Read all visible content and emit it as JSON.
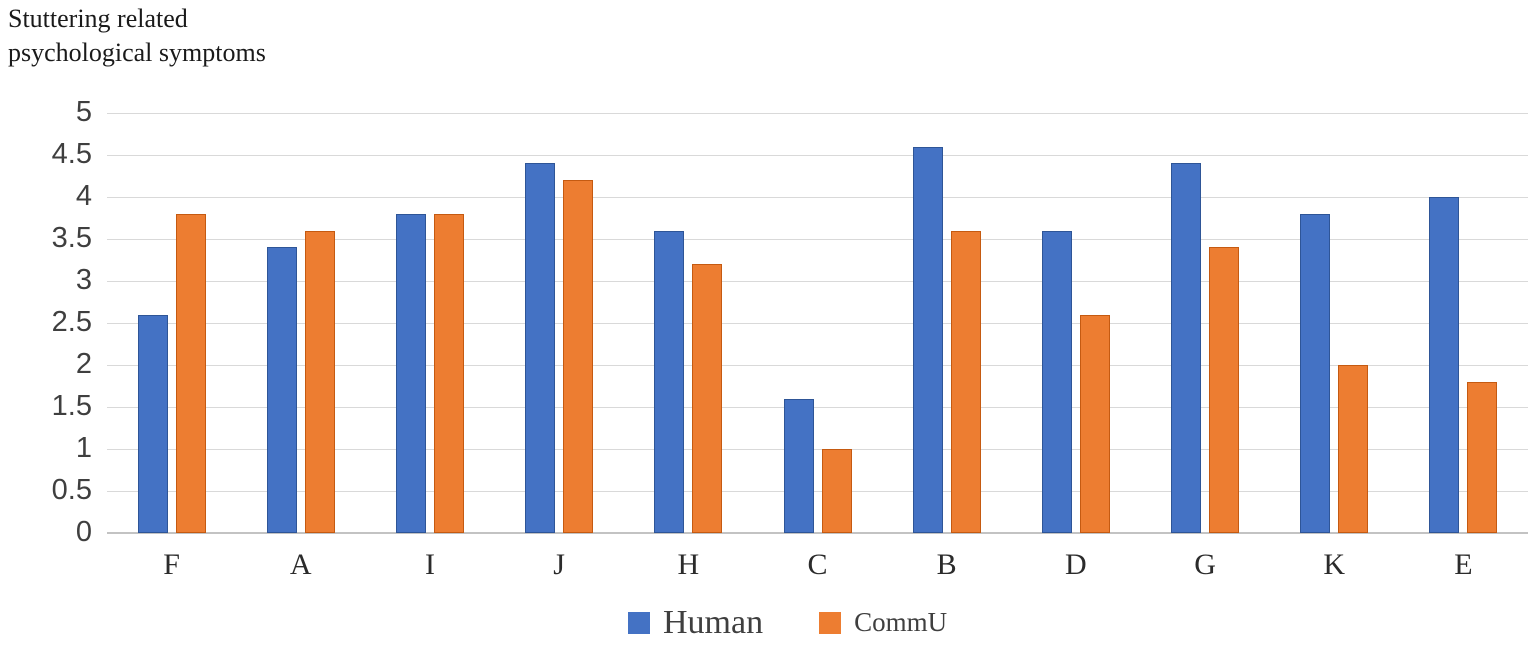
{
  "title": {
    "line1": "Stuttering related",
    "line2": "psychological symptoms"
  },
  "chart_data": {
    "type": "bar",
    "title": "Stuttering related psychological symptoms",
    "categories": [
      "F",
      "A",
      "I",
      "J",
      "H",
      "C",
      "B",
      "D",
      "G",
      "K",
      "E"
    ],
    "series": [
      {
        "name": "Human",
        "color": "#4472C4",
        "border_color": "#2e5597",
        "values": [
          2.6,
          3.4,
          3.8,
          4.4,
          3.6,
          1.6,
          4.6,
          3.6,
          4.4,
          3.8,
          4.0
        ]
      },
      {
        "name": "CommU",
        "color": "#ED7D31",
        "border_color": "#c55a11",
        "values": [
          3.8,
          3.6,
          3.8,
          4.2,
          3.2,
          1.0,
          3.6,
          2.6,
          3.4,
          2.0,
          1.8
        ]
      }
    ],
    "xlabel": "",
    "ylabel": "",
    "ylim": [
      0,
      5
    ],
    "ytick_step": 0.5,
    "ytick_labels": [
      "5",
      "4.5",
      "4",
      "3.5",
      "3",
      "2.5",
      "2",
      "1.5",
      "1",
      "0.5",
      "0"
    ],
    "grid": true,
    "legend_position": "bottom"
  },
  "legend": {
    "items": [
      {
        "label": "Human",
        "color": "#4472C4"
      },
      {
        "label": "CommU",
        "color": "#ED7D31"
      }
    ]
  },
  "colors": {
    "gridline": "#d9d9d9",
    "axis_line": "#c3c3c3",
    "tick_text": "#3f3f3f",
    "title_text": "#1a1a1a",
    "background": "#ffffff"
  }
}
